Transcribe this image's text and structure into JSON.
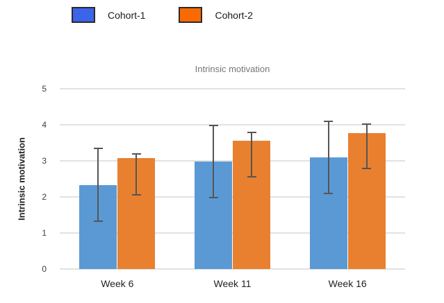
{
  "page": {
    "background": "#ffffff"
  },
  "legend": {
    "position": "top",
    "swatch_border_color": "#2a2a2a",
    "items": [
      {
        "label": "Cohort-1",
        "color": "#3c64e8"
      },
      {
        "label": "Cohort-2",
        "color": "#fb6a02"
      }
    ]
  },
  "chart_data": {
    "type": "bar",
    "title": "Intrinsic motivation",
    "xlabel": "",
    "ylabel": "Intrinsic motivation",
    "categories": [
      "Week 6",
      "Week 11",
      "Week 16"
    ],
    "series": [
      {
        "name": "Cohort-1",
        "color": "#5b99d5",
        "values": [
          2.33,
          2.98,
          3.1
        ],
        "error_low": [
          1.33,
          1.98,
          2.1
        ],
        "error_high": [
          3.35,
          3.98,
          4.1
        ]
      },
      {
        "name": "Cohort-2",
        "color": "#e8802f",
        "values": [
          3.07,
          3.55,
          3.77
        ],
        "error_low": [
          2.05,
          2.55,
          2.78
        ],
        "error_high": [
          3.2,
          3.78,
          4.02
        ]
      }
    ],
    "ylim": [
      0,
      5
    ],
    "yticks": [
      0,
      1,
      2,
      3,
      4,
      5
    ],
    "grid": true,
    "gridline_color": "#e2e2e2",
    "error_bar_color": "#555555",
    "legend_position": "top"
  }
}
